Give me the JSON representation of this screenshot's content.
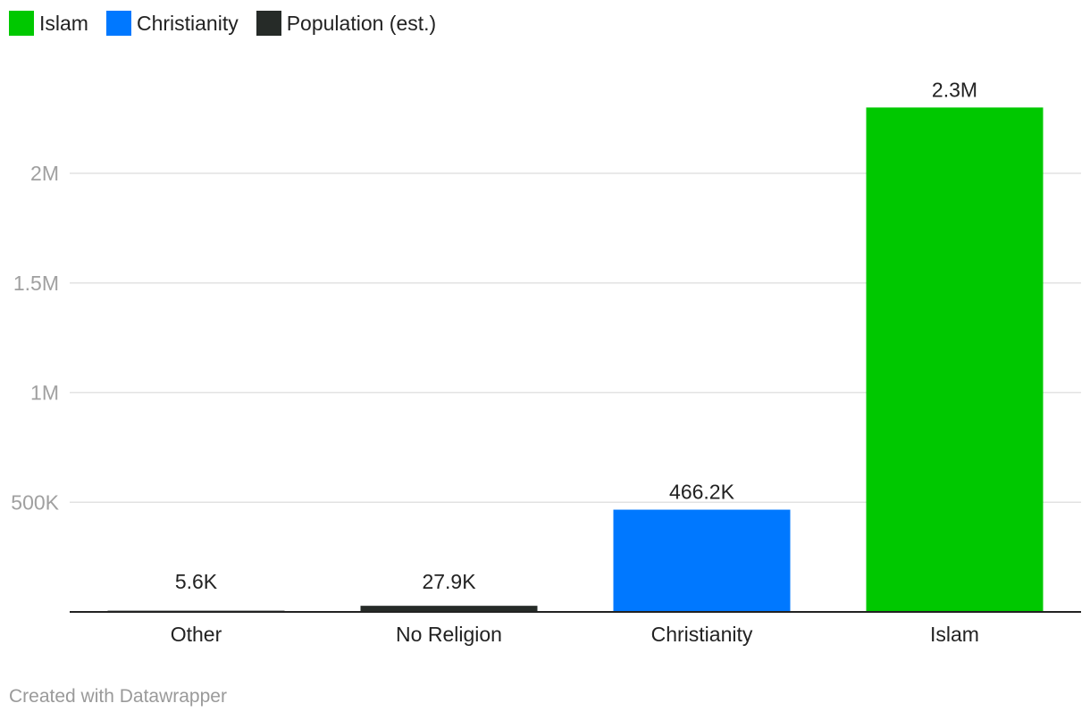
{
  "legend": {
    "items": [
      {
        "label": "Islam",
        "color": "#00c800"
      },
      {
        "label": "Christianity",
        "color": "#0078ff"
      },
      {
        "label": "Population (est.)",
        "color": "#262b28"
      }
    ]
  },
  "chart_data": {
    "type": "bar",
    "title": "",
    "xlabel": "",
    "ylabel": "",
    "categories": [
      "Other",
      "No Religion",
      "Christianity",
      "Islam"
    ],
    "values": [
      5600,
      27900,
      466200,
      2300000
    ],
    "value_labels": [
      "5.6K",
      "27.9K",
      "466.2K",
      "2.3M"
    ],
    "colors": [
      "#262b28",
      "#262b28",
      "#0078ff",
      "#00c800"
    ],
    "ylim": [
      0,
      2300000
    ],
    "yticks": [
      {
        "value": 500000,
        "label": "500K"
      },
      {
        "value": 1000000,
        "label": "1M"
      },
      {
        "value": 1500000,
        "label": "1.5M"
      },
      {
        "value": 2000000,
        "label": "2M"
      }
    ],
    "grid": true
  },
  "footer": {
    "credit": "Created with Datawrapper"
  }
}
